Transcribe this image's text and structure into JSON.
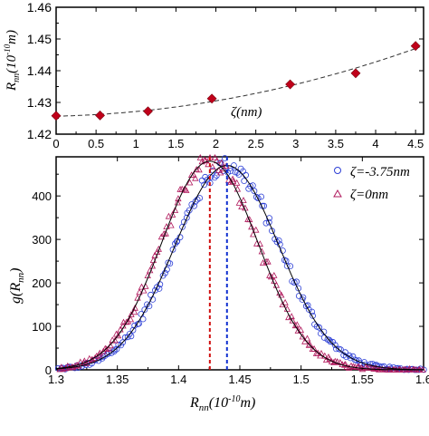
{
  "chart_data": [
    {
      "type": "scatter",
      "title": "",
      "xlabel": "ζ(nm)",
      "ylabel_main": "R",
      "ylabel_sub": "nn",
      "ylabel_rest": "(10",
      "ylabel_exp": "-10",
      "ylabel_unit": "m)",
      "xlim": [
        0,
        4.6
      ],
      "ylim": [
        1.42,
        1.46
      ],
      "xticks": [
        "0",
        "0.5",
        "1",
        "1.5",
        "2",
        "2.5",
        "3",
        "3.5",
        "4",
        "4.5"
      ],
      "yticks": [
        "1.42",
        "1.43",
        "1.44",
        "1.45",
        "1.46"
      ],
      "series": [
        {
          "marker": "diamond",
          "color": "#c0001a",
          "x": [
            0,
            0.55,
            1.15,
            1.95,
            2.93,
            3.75,
            4.5
          ],
          "y": [
            1.4258,
            1.4259,
            1.4272,
            1.4312,
            1.4357,
            1.4392,
            1.4478
          ]
        }
      ],
      "fit": {
        "style": "dashed",
        "color": "#333333"
      }
    },
    {
      "type": "scatter",
      "xlabel_main": "R",
      "xlabel_sub": "nn",
      "xlabel_rest": "(10",
      "xlabel_exp": "-10",
      "xlabel_unit": "m)",
      "ylabel_main": "g(R",
      "ylabel_sub": "nn",
      "ylabel_rest": ")",
      "xlim": [
        1.3,
        1.6
      ],
      "ylim": [
        0,
        490
      ],
      "xticks": [
        "1.3",
        "1.35",
        "1.4",
        "1.45",
        "1.5",
        "1.55",
        "1.6"
      ],
      "yticks": [
        "0",
        "100",
        "200",
        "300",
        "400"
      ],
      "legend_position": "top-right",
      "series": [
        {
          "name": "ζ=-3.75nm",
          "marker": "circle",
          "color": "#2c3fd6",
          "peak_x": 1.4395,
          "peak_y": 470,
          "sigma": 0.0425
        },
        {
          "name": "ζ=0nm",
          "marker": "triangle",
          "color": "#b0185c",
          "peak_x": 1.4255,
          "peak_y": 480,
          "sigma": 0.0395
        }
      ],
      "reference_lines": [
        {
          "x": 1.4255,
          "color": "#d01010",
          "style": "dashed"
        },
        {
          "x": 1.4395,
          "color": "#1030d0",
          "style": "dashed"
        }
      ]
    }
  ]
}
